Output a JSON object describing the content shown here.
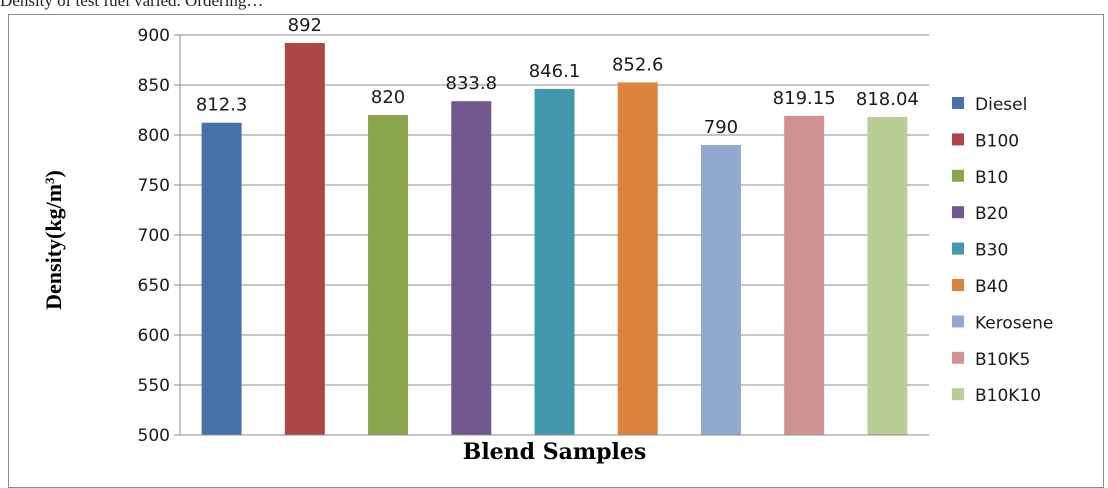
{
  "caption_fragment": "Density of test fuel varied. Ordering…",
  "chart_data": {
    "type": "bar",
    "categories": [
      "Diesel",
      "B100",
      "B10",
      "B20",
      "B30",
      "B40",
      "Kerosene",
      "B10K5",
      "B10K10"
    ],
    "values": [
      812.3,
      892,
      820,
      833.8,
      846.1,
      852.6,
      790,
      819.15,
      818.04
    ],
    "data_labels": [
      "812.3",
      "892",
      "820",
      "833.8",
      "846.1",
      "852.6",
      "790",
      "819.15",
      "818.04"
    ],
    "colors": [
      "#4573a7",
      "#aa4644",
      "#89a54e",
      "#71588f",
      "#4298af",
      "#db843d",
      "#93a9cf",
      "#d19392",
      "#b9cd96"
    ],
    "xlabel": "Blend Samples",
    "ylabel": "Density(kg/m",
    "ylabel_superscript": "3",
    "ylabel_suffix": ")",
    "ylim": [
      500,
      900
    ],
    "yticks": [
      500,
      550,
      600,
      650,
      700,
      750,
      800,
      850,
      900
    ],
    "grid": true,
    "legend_position": "right"
  }
}
